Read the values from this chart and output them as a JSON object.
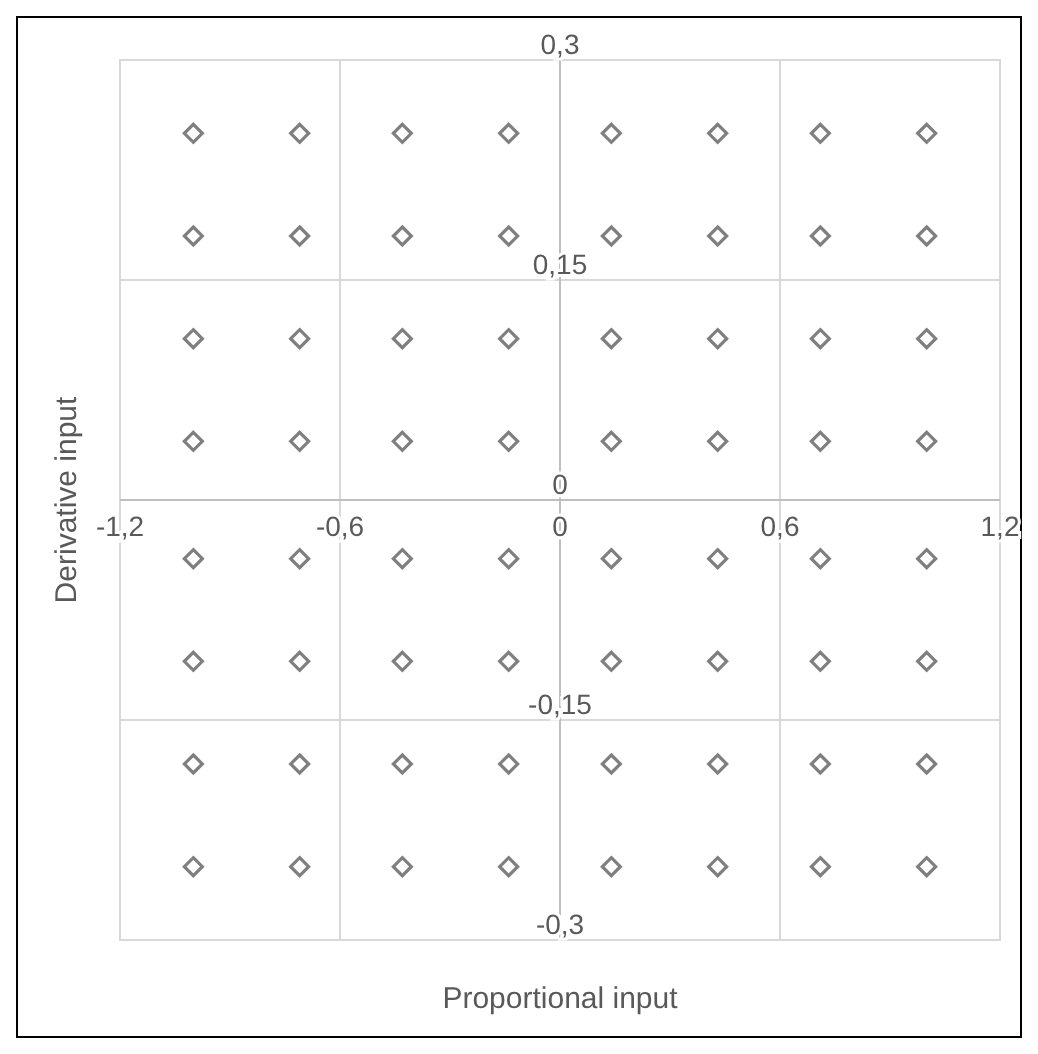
{
  "chart_data": {
    "type": "scatter",
    "xlabel": "Proportional input",
    "ylabel": "Derivative input",
    "xlim": [
      -1.2,
      1.2
    ],
    "ylim": [
      -0.3,
      0.3
    ],
    "xticks": [
      {
        "value": -1.2,
        "label": "-1,2"
      },
      {
        "value": -0.6,
        "label": "-0,6"
      },
      {
        "value": 0,
        "label": "0"
      },
      {
        "value": 0.6,
        "label": "0,6"
      },
      {
        "value": 1.2,
        "label": "1,2"
      }
    ],
    "yticks": [
      {
        "value": -0.3,
        "label": "-0,3"
      },
      {
        "value": -0.15,
        "label": "-0,15"
      },
      {
        "value": 0,
        "label": "0"
      },
      {
        "value": 0.15,
        "label": "0,15"
      },
      {
        "value": 0.3,
        "label": "0,3"
      }
    ],
    "grid": true,
    "marker": "diamond",
    "series": [
      {
        "color": "#7f7f7f",
        "x": [
          -1,
          -0.71,
          -0.43,
          -0.14,
          0.14,
          0.43,
          0.71,
          1,
          -1,
          -0.71,
          -0.43,
          -0.14,
          0.14,
          0.43,
          0.71,
          1,
          -1,
          -0.71,
          -0.43,
          -0.14,
          0.14,
          0.43,
          0.71,
          1,
          -1,
          -0.71,
          -0.43,
          -0.14,
          0.14,
          0.43,
          0.71,
          1,
          -1,
          -0.71,
          -0.43,
          -0.14,
          0.14,
          0.43,
          0.71,
          1,
          -1,
          -0.71,
          -0.43,
          -0.14,
          0.14,
          0.43,
          0.71,
          1,
          -1,
          -0.71,
          -0.43,
          -0.14,
          0.14,
          0.43,
          0.71,
          1,
          -1,
          -0.71,
          -0.43,
          -0.14,
          0.14,
          0.43,
          0.71,
          1
        ],
        "values": [
          0.25,
          0.25,
          0.25,
          0.25,
          0.25,
          0.25,
          0.25,
          0.25,
          0.18,
          0.18,
          0.18,
          0.18,
          0.18,
          0.18,
          0.18,
          0.18,
          0.11,
          0.11,
          0.11,
          0.11,
          0.11,
          0.11,
          0.11,
          0.11,
          0.04,
          0.04,
          0.04,
          0.04,
          0.04,
          0.04,
          0.04,
          0.04,
          -0.04,
          -0.04,
          -0.04,
          -0.04,
          -0.04,
          -0.04,
          -0.04,
          -0.04,
          -0.11,
          -0.11,
          -0.11,
          -0.11,
          -0.11,
          -0.11,
          -0.11,
          -0.11,
          -0.18,
          -0.18,
          -0.18,
          -0.18,
          -0.18,
          -0.18,
          -0.18,
          -0.18,
          -0.25,
          -0.25,
          -0.25,
          -0.25,
          -0.25,
          -0.25,
          -0.25,
          -0.25
        ]
      }
    ]
  }
}
